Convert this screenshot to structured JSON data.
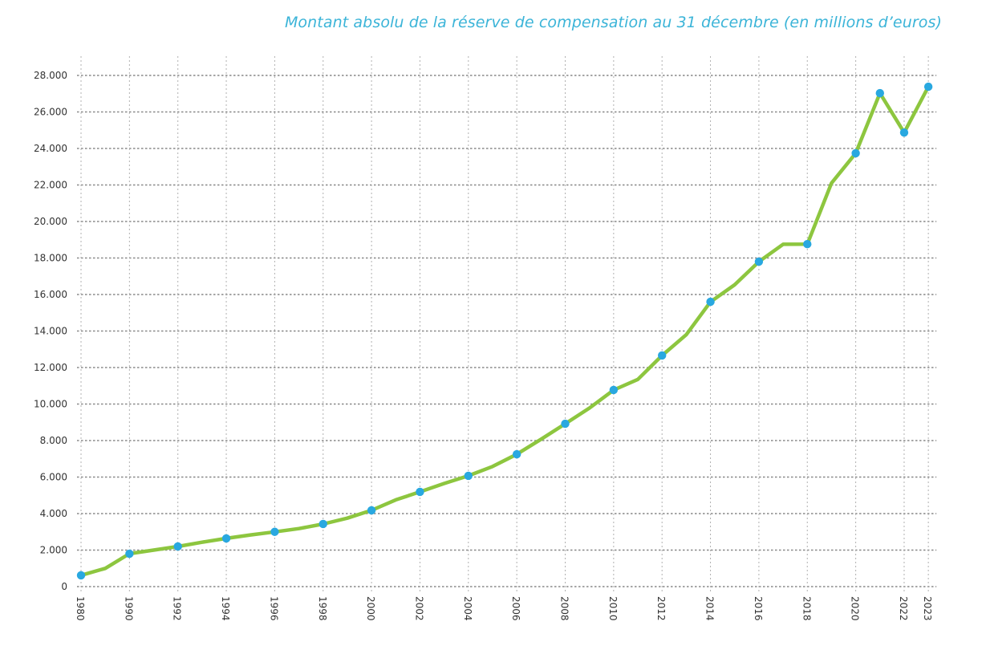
{
  "chart_data": {
    "type": "line",
    "title": "Montant absolu de la réserve de compensation au 31 décembre (en millions d’euros)",
    "xlabel": "",
    "ylabel": "",
    "ylim": [
      0,
      28000
    ],
    "grid": true,
    "legend": null,
    "y_ticks": [
      "0",
      "2.000",
      "4.000",
      "6.000",
      "8.000",
      "10.000",
      "12.000",
      "14.000",
      "16.000",
      "18.000",
      "20.000",
      "22.000",
      "24.000",
      "26.000",
      "28.000"
    ],
    "x_tick_labels": [
      "1980",
      "1990",
      "1992",
      "1994",
      "1996",
      "1998",
      "2000",
      "2002",
      "2004",
      "2006",
      "2008",
      "2010",
      "2012",
      "2014",
      "2016",
      "2018",
      "2020",
      "2022",
      "2023"
    ],
    "colors": {
      "line": "#8dc63f",
      "marker": "#29a8e0",
      "title": "#3bb4d8",
      "grid": "#888888"
    },
    "series": [
      {
        "name": "Réserve de compensation",
        "points": [
          {
            "x": "1980",
            "pos": 0,
            "y": 620,
            "marker": true
          },
          {
            "x": "1985",
            "pos": 0.5,
            "y": 1000,
            "marker": false
          },
          {
            "x": "1990",
            "pos": 1,
            "y": 1800,
            "marker": true
          },
          {
            "x": "1991",
            "pos": 1.5,
            "y": 2000,
            "marker": false
          },
          {
            "x": "1992",
            "pos": 2,
            "y": 2200,
            "marker": true
          },
          {
            "x": "1993",
            "pos": 2.5,
            "y": 2430,
            "marker": false
          },
          {
            "x": "1994",
            "pos": 3,
            "y": 2640,
            "marker": true
          },
          {
            "x": "1995",
            "pos": 3.5,
            "y": 2830,
            "marker": false
          },
          {
            "x": "1996",
            "pos": 4,
            "y": 3000,
            "marker": true
          },
          {
            "x": "1997",
            "pos": 4.5,
            "y": 3180,
            "marker": false
          },
          {
            "x": "1998",
            "pos": 5,
            "y": 3430,
            "marker": true
          },
          {
            "x": "1999",
            "pos": 5.5,
            "y": 3750,
            "marker": false
          },
          {
            "x": "2000",
            "pos": 6,
            "y": 4180,
            "marker": true
          },
          {
            "x": "2001",
            "pos": 6.5,
            "y": 4750,
            "marker": false
          },
          {
            "x": "2002",
            "pos": 7,
            "y": 5190,
            "marker": true
          },
          {
            "x": "2003",
            "pos": 7.5,
            "y": 5650,
            "marker": false
          },
          {
            "x": "2004",
            "pos": 8,
            "y": 6070,
            "marker": true
          },
          {
            "x": "2005",
            "pos": 8.5,
            "y": 6580,
            "marker": false
          },
          {
            "x": "2006",
            "pos": 9,
            "y": 7250,
            "marker": true
          },
          {
            "x": "2007",
            "pos": 9.5,
            "y": 8070,
            "marker": false
          },
          {
            "x": "2008",
            "pos": 10,
            "y": 8920,
            "marker": true
          },
          {
            "x": "2009",
            "pos": 10.5,
            "y": 9780,
            "marker": false
          },
          {
            "x": "2010",
            "pos": 11,
            "y": 10770,
            "marker": true
          },
          {
            "x": "2011",
            "pos": 11.5,
            "y": 11350,
            "marker": false
          },
          {
            "x": "2012",
            "pos": 12,
            "y": 12660,
            "marker": true
          },
          {
            "x": "2013",
            "pos": 12.5,
            "y": 13800,
            "marker": false
          },
          {
            "x": "2014",
            "pos": 13,
            "y": 15600,
            "marker": true
          },
          {
            "x": "2015",
            "pos": 13.5,
            "y": 16530,
            "marker": false
          },
          {
            "x": "2016",
            "pos": 14,
            "y": 17800,
            "marker": true
          },
          {
            "x": "2017",
            "pos": 14.5,
            "y": 18750,
            "marker": false
          },
          {
            "x": "2018",
            "pos": 15,
            "y": 18760,
            "marker": true
          },
          {
            "x": "2019",
            "pos": 15.5,
            "y": 22100,
            "marker": false
          },
          {
            "x": "2020",
            "pos": 16,
            "y": 23740,
            "marker": true
          },
          {
            "x": "2021",
            "pos": 16.5,
            "y": 27030,
            "marker": true
          },
          {
            "x": "2022",
            "pos": 17,
            "y": 24870,
            "marker": true
          },
          {
            "x": "2023",
            "pos": 17.5,
            "y": 27380,
            "marker": true
          }
        ]
      }
    ]
  }
}
